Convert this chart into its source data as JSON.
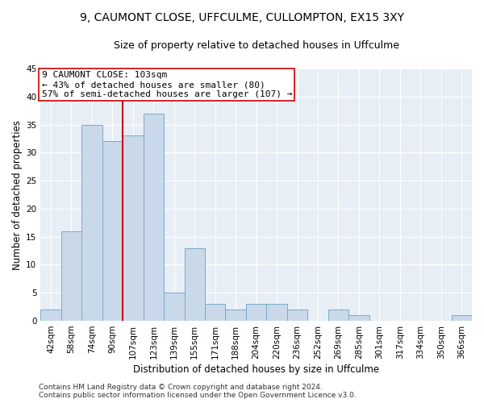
{
  "title": "9, CAUMONT CLOSE, UFFCULME, CULLOMPTON, EX15 3XY",
  "subtitle": "Size of property relative to detached houses in Uffculme",
  "xlabel": "Distribution of detached houses by size in Uffculme",
  "ylabel": "Number of detached properties",
  "categories": [
    "42sqm",
    "58sqm",
    "74sqm",
    "90sqm",
    "107sqm",
    "123sqm",
    "139sqm",
    "155sqm",
    "171sqm",
    "188sqm",
    "204sqm",
    "220sqm",
    "236sqm",
    "252sqm",
    "269sqm",
    "285sqm",
    "301sqm",
    "317sqm",
    "334sqm",
    "350sqm",
    "366sqm"
  ],
  "values": [
    2,
    16,
    35,
    32,
    33,
    37,
    5,
    13,
    3,
    2,
    3,
    3,
    2,
    0,
    2,
    1,
    0,
    0,
    0,
    0,
    1
  ],
  "bar_color": "#c9d9ea",
  "bar_edge_color": "#7aaac8",
  "vline_x_index": 3.5,
  "vline_color": "#cc0000",
  "annotation_line1": "9 CAUMONT CLOSE: 103sqm",
  "annotation_line2": "← 43% of detached houses are smaller (80)",
  "annotation_line3": "57% of semi-detached houses are larger (107) →",
  "annotation_box_facecolor": "#ffffff",
  "annotation_box_edgecolor": "#cc0000",
  "ylim": [
    0,
    45
  ],
  "yticks": [
    0,
    5,
    10,
    15,
    20,
    25,
    30,
    35,
    40,
    45
  ],
  "footnote_line1": "Contains HM Land Registry data © Crown copyright and database right 2024.",
  "footnote_line2": "Contains public sector information licensed under the Open Government Licence v3.0.",
  "bg_color": "#e8eef5",
  "title_fontsize": 10,
  "subtitle_fontsize": 9,
  "axis_label_fontsize": 8.5,
  "tick_fontsize": 7.5,
  "annotation_fontsize": 8,
  "footnote_fontsize": 6.5
}
